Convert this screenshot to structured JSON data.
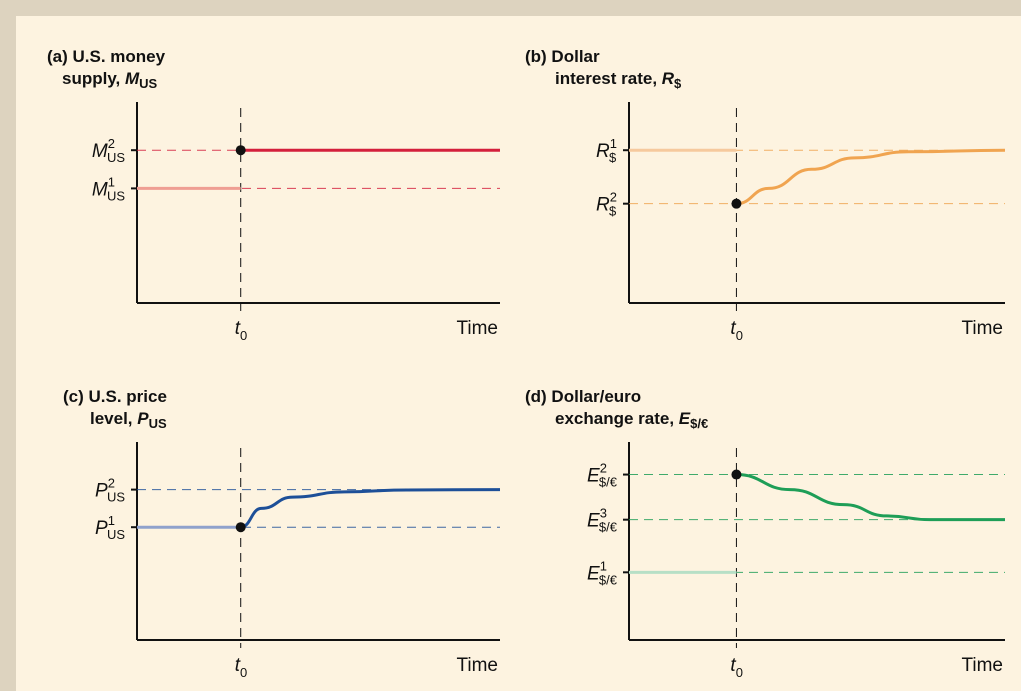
{
  "colors": {
    "background": "#fdf3e0",
    "border": "#ddd3bf",
    "red": "#d41f3c",
    "red_light": "#ef9e93",
    "orange": "#f0a450",
    "orange_light": "#f6c99d",
    "blue": "#1d4f98",
    "blue_light": "#8fa1cc",
    "green": "#1e9e57",
    "green_light": "#b7dfc6"
  },
  "chart_data": [
    {
      "id": "a",
      "type": "line",
      "title_line1": "(a) U.S. money",
      "title_line2_prefix": "supply, ",
      "title_var": "M",
      "title_sub": "US",
      "xlabel": "Time",
      "event_label": "t",
      "event_sub": "0",
      "levels": [
        {
          "id": "M1",
          "symbol": "M",
          "sup": "1",
          "sub": "US",
          "value": 1.5
        },
        {
          "id": "M2",
          "symbol": "M",
          "sup": "2",
          "sub": "US",
          "value": 2.0
        }
      ],
      "ylim": [
        0,
        2.5
      ],
      "t0": 1.0,
      "xlim": [
        0,
        3.5
      ],
      "series": [
        {
          "segment": "before",
          "x": [
            0,
            1.0
          ],
          "y": [
            1.5,
            1.5
          ],
          "style": "light"
        },
        {
          "segment": "after",
          "x": [
            1.0,
            3.5
          ],
          "y": [
            2.0,
            2.0
          ],
          "style": "solid"
        }
      ],
      "jump_point": {
        "x": 1.0,
        "y": 2.0
      },
      "color": "red"
    },
    {
      "id": "b",
      "type": "line",
      "title_line1": "(b) Dollar",
      "title_line2_prefix": "interest rate, ",
      "title_var": "R",
      "title_sub": "$",
      "xlabel": "Time",
      "event_label": "t",
      "event_sub": "0",
      "levels": [
        {
          "id": "R1",
          "symbol": "R",
          "sup": "1",
          "sub": "$",
          "value": 2.0
        },
        {
          "id": "R2",
          "symbol": "R",
          "sup": "2",
          "sub": "$",
          "value": 1.3
        }
      ],
      "ylim": [
        0,
        2.5
      ],
      "t0": 1.0,
      "xlim": [
        0,
        3.5
      ],
      "series": [
        {
          "segment": "before",
          "x": [
            0,
            1.0
          ],
          "y": [
            2.0,
            2.0
          ],
          "style": "light"
        },
        {
          "segment": "after",
          "x": [
            1.0,
            1.3,
            1.7,
            2.1,
            2.6,
            3.5
          ],
          "y": [
            1.3,
            1.5,
            1.75,
            1.9,
            1.98,
            2.0
          ],
          "style": "solid"
        }
      ],
      "jump_point": {
        "x": 1.0,
        "y": 1.3
      },
      "color": "orange"
    },
    {
      "id": "c",
      "type": "line",
      "title_line1": "(c) U.S. price",
      "title_line2_prefix": "level, ",
      "title_var": "P",
      "title_sub": "US",
      "xlabel": "Time",
      "event_label": "t",
      "event_sub": "0",
      "levels": [
        {
          "id": "P1",
          "symbol": "P",
          "sup": "1",
          "sub": "US",
          "value": 1.5
        },
        {
          "id": "P2",
          "symbol": "P",
          "sup": "2",
          "sub": "US",
          "value": 2.0
        }
      ],
      "ylim": [
        0,
        2.5
      ],
      "t0": 1.0,
      "xlim": [
        0,
        3.5
      ],
      "series": [
        {
          "segment": "before",
          "x": [
            0,
            1.0
          ],
          "y": [
            1.5,
            1.5
          ],
          "style": "light"
        },
        {
          "segment": "after",
          "x": [
            1.0,
            1.2,
            1.5,
            2.0,
            2.6,
            3.5
          ],
          "y": [
            1.5,
            1.75,
            1.9,
            1.97,
            1.995,
            2.0
          ],
          "style": "solid"
        }
      ],
      "jump_point": {
        "x": 1.0,
        "y": 1.5
      },
      "color": "blue"
    },
    {
      "id": "d",
      "type": "line",
      "title_line1": "(d) Dollar/euro",
      "title_line2_prefix": "exchange rate, ",
      "title_var": "E",
      "title_sub": "$/€",
      "xlabel": "Time",
      "event_label": "t",
      "event_sub": "0",
      "levels": [
        {
          "id": "E2",
          "symbol": "E",
          "sup": "2",
          "sub": "$/€",
          "value": 2.2
        },
        {
          "id": "E3",
          "symbol": "E",
          "sup": "3",
          "sub": "$/€",
          "value": 1.6
        },
        {
          "id": "E1",
          "symbol": "E",
          "sup": "1",
          "sub": "$/€",
          "value": 0.9
        }
      ],
      "ylim": [
        0,
        2.5
      ],
      "t0": 1.0,
      "xlim": [
        0,
        3.5
      ],
      "series": [
        {
          "segment": "before",
          "x": [
            0,
            1.0
          ],
          "y": [
            0.9,
            0.9
          ],
          "style": "light"
        },
        {
          "segment": "after",
          "x": [
            1.0,
            1.5,
            2.0,
            2.4,
            2.8,
            3.5
          ],
          "y": [
            2.2,
            2.0,
            1.8,
            1.65,
            1.6,
            1.6
          ],
          "style": "solid"
        }
      ],
      "jump_point": {
        "x": 1.0,
        "y": 2.2
      },
      "color": "green"
    }
  ]
}
